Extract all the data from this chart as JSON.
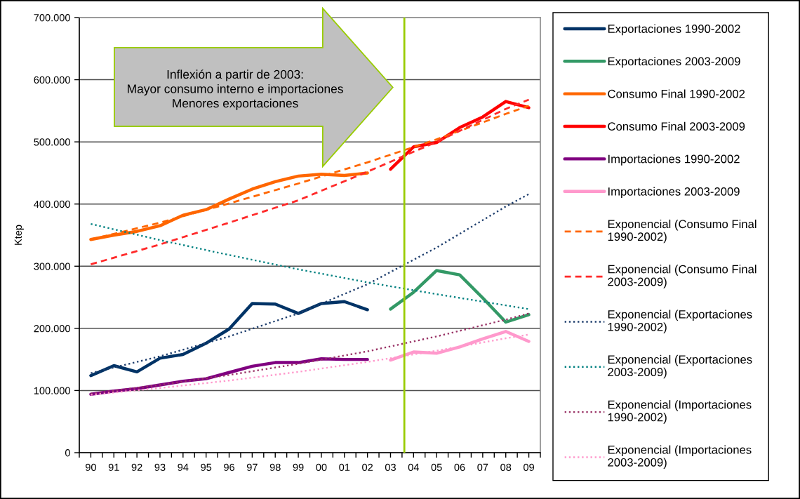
{
  "chart_data": {
    "type": "line",
    "ylabel": "Ktep",
    "xlim": [
      1989.5,
      2009.5
    ],
    "xticks": [
      {
        "value": 1989.5,
        "label": null
      },
      {
        "value": 1990,
        "label": "90"
      },
      {
        "value": 1990.5,
        "label": null
      },
      {
        "value": 1991,
        "label": "91"
      },
      {
        "value": 1991.5,
        "label": null
      },
      {
        "value": 1992,
        "label": "92"
      },
      {
        "value": 1992.5,
        "label": null
      },
      {
        "value": 1993,
        "label": "93"
      },
      {
        "value": 1993.5,
        "label": null
      },
      {
        "value": 1994,
        "label": "94"
      },
      {
        "value": 1994.5,
        "label": null
      },
      {
        "value": 1995,
        "label": "95"
      },
      {
        "value": 1995.5,
        "label": null
      },
      {
        "value": 1996,
        "label": "96"
      },
      {
        "value": 1996.5,
        "label": null
      },
      {
        "value": 1997,
        "label": "97"
      },
      {
        "value": 1997.5,
        "label": null
      },
      {
        "value": 1998,
        "label": "98"
      },
      {
        "value": 1998.5,
        "label": null
      },
      {
        "value": 1999,
        "label": "99"
      },
      {
        "value": 1999.5,
        "label": null
      },
      {
        "value": 2000,
        "label": "00"
      },
      {
        "value": 2000.5,
        "label": null
      },
      {
        "value": 2001,
        "label": "01"
      },
      {
        "value": 2001.5,
        "label": null
      },
      {
        "value": 2002,
        "label": "02"
      },
      {
        "value": 2002.5,
        "label": null
      },
      {
        "value": 2003,
        "label": "03"
      },
      {
        "value": 2003.5,
        "label": null
      },
      {
        "value": 2004,
        "label": "04"
      },
      {
        "value": 2004.5,
        "label": null
      },
      {
        "value": 2005,
        "label": "05"
      },
      {
        "value": 2005.5,
        "label": null
      },
      {
        "value": 2006,
        "label": "06"
      },
      {
        "value": 2006.5,
        "label": null
      },
      {
        "value": 2007,
        "label": "07"
      },
      {
        "value": 2007.5,
        "label": null
      },
      {
        "value": 2008,
        "label": "08"
      },
      {
        "value": 2008.5,
        "label": null
      },
      {
        "value": 2009,
        "label": "09"
      },
      {
        "value": 2009.5,
        "label": null
      }
    ],
    "ylim": [
      0,
      700000
    ],
    "yticks": [
      0,
      {
        "value": 100000,
        "label": "100.000"
      },
      {
        "value": 200000,
        "label": "200.000"
      },
      {
        "value": 300000,
        "label": "300.000"
      },
      {
        "value": 400000,
        "label": "400.000"
      },
      {
        "value": 500000,
        "label": "500.000"
      },
      {
        "value": 600000,
        "label": "600.000"
      },
      {
        "value": 700000,
        "label": "700.000"
      }
    ],
    "grid": "y",
    "legend": "right",
    "series": [
      {
        "name": "Exportaciones 1990-2002",
        "color": "#003366",
        "line_style": "solid",
        "x": [
          1990,
          1991,
          1992,
          1993,
          1994,
          1995,
          1996,
          1997,
          1998,
          1999,
          2000,
          2001,
          2002
        ],
        "values": [
          124000,
          140000,
          130000,
          152000,
          158000,
          176000,
          199000,
          240000,
          239000,
          224000,
          240000,
          243000,
          230000
        ]
      },
      {
        "name": "Exportaciones 2003-2009",
        "color": "#339966",
        "line_style": "solid",
        "x": [
          2003,
          2004,
          2005,
          2006,
          2007,
          2008,
          2009
        ],
        "values": [
          231000,
          258000,
          293000,
          286000,
          249000,
          210000,
          222000
        ]
      },
      {
        "name": "Consumo Final 1990-2002",
        "color": "#ff6600",
        "line_style": "solid",
        "x": [
          1990,
          1991,
          1992,
          1993,
          1994,
          1995,
          1996,
          1997,
          1998,
          1999,
          2000,
          2001,
          2002
        ],
        "values": [
          343000,
          350000,
          356000,
          365000,
          382000,
          391000,
          408000,
          424000,
          436000,
          445000,
          448000,
          446000,
          450000
        ]
      },
      {
        "name": "Consumo Final 2003-2009",
        "color": "#ff0000",
        "line_style": "solid",
        "x": [
          2003,
          2004,
          2005,
          2006,
          2007,
          2008,
          2009
        ],
        "values": [
          456000,
          492000,
          499000,
          523000,
          540000,
          565000,
          555000
        ]
      },
      {
        "name": "Importaciones 1990-2002",
        "color": "#800080",
        "line_style": "solid",
        "x": [
          1990,
          1991,
          1992,
          1993,
          1994,
          1995,
          1996,
          1997,
          1998,
          1999,
          2000,
          2001,
          2002
        ],
        "values": [
          94000,
          99000,
          103000,
          109000,
          115000,
          119000,
          129000,
          139000,
          145000,
          145000,
          151000,
          150000,
          150000
        ]
      },
      {
        "name": "Importaciones 2003-2009",
        "color": "#ff99cc",
        "line_style": "solid",
        "x": [
          2003,
          2004,
          2005,
          2006,
          2007,
          2008,
          2009
        ],
        "values": [
          149000,
          162000,
          160000,
          170000,
          183000,
          195000,
          179000
        ]
      },
      {
        "name": "Exponencial (Consumo Final\n1990-2002)",
        "color": "#ff6600",
        "line_style": "dashed",
        "x": [
          1990,
          1993,
          1996,
          1999,
          2002,
          2005,
          2008,
          2009
        ],
        "values": [
          343000,
          370000,
          401000,
          433000,
          467000,
          504000,
          545000,
          558000
        ]
      },
      {
        "name": "Exponencial (Consumo Final\n2003-2009)",
        "color": "#ff2a2a",
        "line_style": "dashed",
        "x": [
          1990,
          1993,
          1996,
          1999,
          2002,
          2005,
          2008,
          2009
        ],
        "values": [
          303000,
          335000,
          370000,
          406000,
          452000,
          500000,
          553000,
          568000
        ]
      },
      {
        "name": "Exponencial (Exportaciones\n1990-2002)",
        "color": "#1f3f6e",
        "line_style": "dotted",
        "x": [
          1990,
          1993,
          1996,
          1999,
          2002,
          2005,
          2008,
          2009
        ],
        "values": [
          128000,
          155000,
          187000,
          224000,
          271000,
          330000,
          396000,
          416000
        ]
      },
      {
        "name": "Exponencial (Exportaciones\n2003-2009)",
        "color": "#008080",
        "line_style": "dotted",
        "x": [
          1990,
          1993,
          1996,
          1999,
          2002,
          2005,
          2008,
          2009
        ],
        "values": [
          368000,
          342000,
          318000,
          295000,
          274000,
          255000,
          237000,
          231000
        ]
      },
      {
        "name": "Exponencial (Importaciones\n1990-2002)",
        "color": "#993366",
        "line_style": "dotted",
        "x": [
          1990,
          1993,
          1996,
          1999,
          2002,
          2005,
          2008,
          2009
        ],
        "values": [
          95000,
          109000,
          125000,
          143000,
          163000,
          187000,
          214000,
          224000
        ]
      },
      {
        "name": "Exponencial (Importaciones\n2003-2009)",
        "color": "#ff99cc",
        "line_style": "dotted",
        "x": [
          1990,
          1993,
          1996,
          1999,
          2002,
          2005,
          2008,
          2009
        ],
        "values": [
          93000,
          104000,
          116000,
          130000,
          146000,
          164000,
          184000,
          190000
        ]
      }
    ],
    "ref_lines": [
      {
        "axis": "x",
        "value": 2003.6,
        "color": "#99cc00"
      }
    ],
    "annotations": [
      "Inflexión a partir de 2003:\nMayor consumo interno e importaciones\nMenores exportaciones"
    ]
  }
}
